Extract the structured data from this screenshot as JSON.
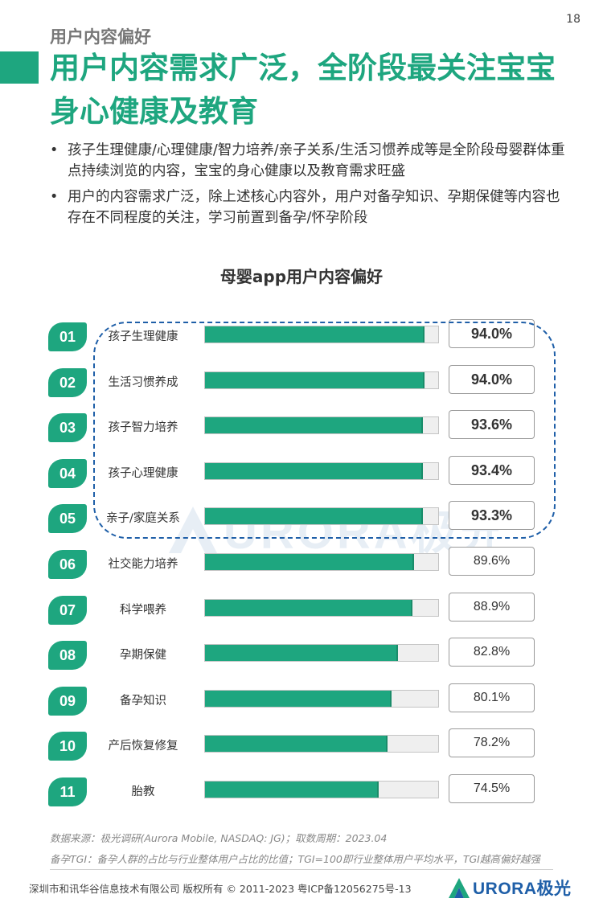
{
  "page_number": "18",
  "section_tag": "用户内容偏好",
  "title": "用户内容需求广泛，全阶段最关注宝宝身心健康及教育",
  "bullets": [
    "孩子生理健康/心理健康/智力培养/亲子关系/生活习惯养成等是全阶段母婴群体重点持续浏览的内容，宝宝的身心健康以及教育需求旺盛",
    "用户的内容需求广泛，除上述核心内容外，用户对备孕知识、孕期保健等内容也存在不同程度的关注，学习前置到备孕/怀孕阶段"
  ],
  "colors": {
    "accent": "#1ea67f",
    "highlight_border": "#1f5fa8",
    "bar_track": "#efefef",
    "text": "#333333"
  },
  "chart_data": {
    "type": "bar",
    "orientation": "horizontal",
    "title": "母婴app用户内容偏好",
    "xlim": [
      0,
      100
    ],
    "unit": "%",
    "highlighted_top_n": 5,
    "rows": [
      {
        "rank": "01",
        "label": "孩子生理健康",
        "value": 94.0,
        "value_label": "94.0%"
      },
      {
        "rank": "02",
        "label": "生活习惯养成",
        "value": 94.0,
        "value_label": "94.0%"
      },
      {
        "rank": "03",
        "label": "孩子智力培养",
        "value": 93.6,
        "value_label": "93.6%"
      },
      {
        "rank": "04",
        "label": "孩子心理健康",
        "value": 93.4,
        "value_label": "93.4%"
      },
      {
        "rank": "05",
        "label": "亲子/家庭关系",
        "value": 93.3,
        "value_label": "93.3%"
      },
      {
        "rank": "06",
        "label": "社交能力培养",
        "value": 89.6,
        "value_label": "89.6%"
      },
      {
        "rank": "07",
        "label": "科学喂养",
        "value": 88.9,
        "value_label": "88.9%"
      },
      {
        "rank": "08",
        "label": "孕期保健",
        "value": 82.8,
        "value_label": "82.8%"
      },
      {
        "rank": "09",
        "label": "备孕知识",
        "value": 80.1,
        "value_label": "80.1%"
      },
      {
        "rank": "10",
        "label": "产后恢复修复",
        "value": 78.2,
        "value_label": "78.2%"
      },
      {
        "rank": "11",
        "label": "胎教",
        "value": 74.5,
        "value_label": "74.5%"
      }
    ]
  },
  "watermark_text": "URORA极光",
  "source_note": "数据来源：极光调研(Aurora Mobile, NASDAQ: JG)；取数周期：2023.04",
  "definition_note": "备孕TGI：备孕人群的占比与行业整体用户占比的比值；TGI=100即行业整体用户平均水平，TGI越高偏好越强",
  "footer": {
    "copyright": "深圳市和讯华谷信息技术有限公司 版权所有 © 2011-2023 粤ICP备12056275号-13",
    "logo_text": "URORA极光"
  }
}
